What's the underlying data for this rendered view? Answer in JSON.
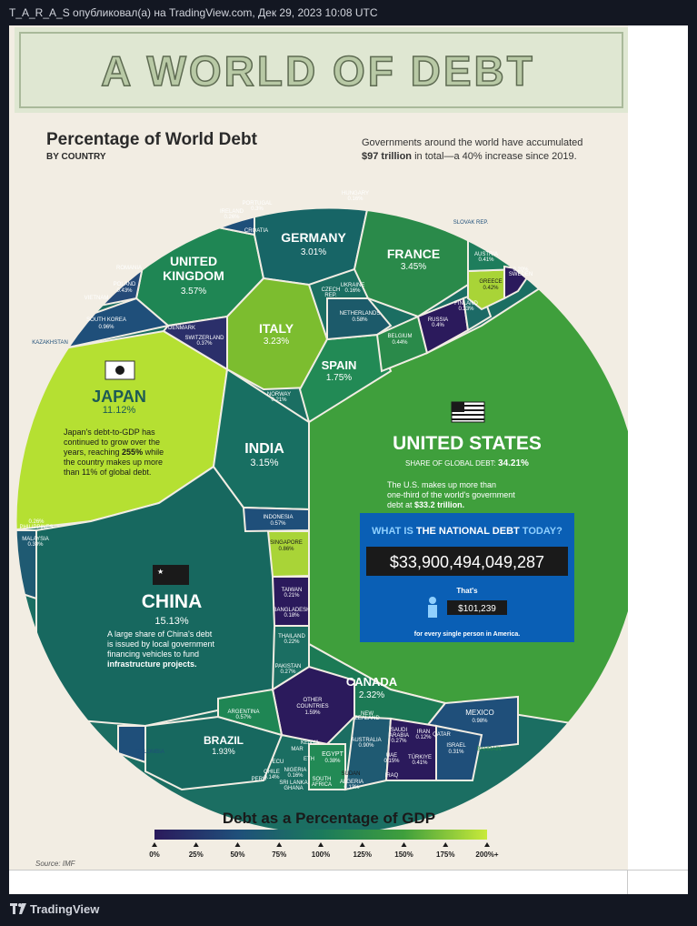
{
  "header": {
    "published_line": "T_A_R_A_S опубликовал(а) на TradingView.com, Дек 29, 2023 10:08 UTC"
  },
  "footer": {
    "brand": "TradingView"
  },
  "infographic": {
    "banner_title": "A WORLD OF DEBT",
    "title": "Percentage of World Debt",
    "subtitle": "BY COUNTRY",
    "intro_line1": "Governments around the world have accumulated",
    "intro_bold": "$97 trillion",
    "intro_line2": " in total—a 40% increase since 2019.",
    "source": "Source: IMF",
    "legend_title": "Debt as a Percentage of GDP",
    "legend_ticks": [
      "0%",
      "25%",
      "50%",
      "75%",
      "100%",
      "125%",
      "150%",
      "175%",
      "200%+"
    ],
    "colors": {
      "paper": "#f2ede3",
      "banner": "#dfe7d2",
      "banner_text": "#b8c9a5",
      "scale_0": "#2b1a5c",
      "scale_50": "#1f4f7a",
      "scale_100": "#1b7a5c",
      "scale_150": "#3f9f3c",
      "scale_200": "#c9ea3a",
      "debt_panel": "#0a5fb5",
      "debt_counter": "#1a1a1a"
    },
    "us": {
      "name": "UNITED STATES",
      "share_label": "SHARE OF GLOBAL DEBT:",
      "share": "34.21%",
      "note1": "The U.S. makes up more than",
      "note2": "one-third of the world's government",
      "note3": "debt at",
      "note_bold": "$33.2 trillion.",
      "debt_title_a": "WHAT IS",
      "debt_title_b": "THE NATIONAL DEBT",
      "debt_title_c": "TODAY?",
      "debt_counter": "$33,900,494,049,287",
      "thats": "That's",
      "per_person": "$101,239",
      "per_person_note": "for every single person in America."
    },
    "japan": {
      "name": "JAPAN",
      "value": "11.12%",
      "note1": "Japan's debt-to-GDP has",
      "note2": "continued to grow over the",
      "note3a": "years, reaching ",
      "note3b": "255%",
      "note3c": " while",
      "note4": "the country makes up more",
      "note5": "than 11% of global debt."
    },
    "china": {
      "name": "CHINA",
      "value": "15.13%",
      "note1": "A large share of China's debt",
      "note2": "is issued by local government",
      "note3": "financing vehicles to fund",
      "note4": "infrastructure projects."
    }
  },
  "chart_data": {
    "type": "treemap",
    "title": "Percentage of World Debt",
    "subtitle": "BY COUNTRY",
    "unit": "share of global debt (%)",
    "items": [
      {
        "label": "UNITED STATES",
        "value": 34.21
      },
      {
        "label": "CHINA",
        "value": 15.13
      },
      {
        "label": "JAPAN",
        "value": 11.12
      },
      {
        "label": "UNITED KINGDOM",
        "value": 3.57
      },
      {
        "label": "FRANCE",
        "value": 3.45
      },
      {
        "label": "ITALY",
        "value": 3.23
      },
      {
        "label": "INDIA",
        "value": 3.15
      },
      {
        "label": "GERMANY",
        "value": 3.01
      },
      {
        "label": "CANADA",
        "value": 2.32
      },
      {
        "label": "BRAZIL",
        "value": 1.93
      },
      {
        "label": "SPAIN",
        "value": 1.75
      },
      {
        "label": "OTHER COUNTRIES",
        "value": 1.59
      },
      {
        "label": "MEXICO",
        "value": 0.98
      },
      {
        "label": "SOUTH KOREA",
        "value": 0.96
      },
      {
        "label": "AUSTRALIA",
        "value": 0.9
      },
      {
        "label": "SINGAPORE",
        "value": 0.86
      },
      {
        "label": "ARGENTINA",
        "value": 0.57
      },
      {
        "label": "INDONESIA",
        "value": 0.57
      },
      {
        "label": "NETHERLANDS",
        "value": 0.58
      },
      {
        "label": "BELGIUM",
        "value": 0.44
      },
      {
        "label": "POLAND",
        "value": 0.43
      },
      {
        "label": "GREECE",
        "value": 0.42
      },
      {
        "label": "AUSTRIA",
        "value": 0.41
      },
      {
        "label": "TÜRKIYE",
        "value": 0.41
      },
      {
        "label": "SWITZERLAND",
        "value": 0.37
      },
      {
        "label": "EGYPT",
        "value": 0.38
      },
      {
        "label": "ISRAEL",
        "value": 0.31
      },
      {
        "label": "MALAYSIA",
        "value": 0.3
      },
      {
        "label": "RUSSIA",
        "value": 0.4
      },
      {
        "label": "PORTUGAL",
        "value": 0.3
      },
      {
        "label": "SAUDI ARABIA",
        "value": 0.27
      },
      {
        "label": "PAKISTAN",
        "value": 0.27
      },
      {
        "label": "IRELAND",
        "value": 0.26
      },
      {
        "label": "PHILIPPINES",
        "value": 0.26
      },
      {
        "label": "FINLAND",
        "value": 0.23
      },
      {
        "label": "THAILAND",
        "value": 0.22
      },
      {
        "label": "TAIWAN",
        "value": 0.21
      },
      {
        "label": "NORWAY",
        "value": 0.21
      },
      {
        "label": "SWEDEN",
        "value": 0.2
      },
      {
        "label": "BANGLADESH",
        "value": 0.18
      },
      {
        "label": "HUNGARY",
        "value": 0.16
      },
      {
        "label": "UKRAINE",
        "value": 0.16
      },
      {
        "label": "IRAN",
        "value": 0.12
      },
      {
        "label": "VIETNAM",
        "value": 0.12
      },
      {
        "label": "CHILE",
        "value": 0.14
      },
      {
        "label": "NIGERIA",
        "value": 0.16
      },
      {
        "label": "ALGERIA",
        "value": 0.13
      },
      {
        "label": "IRAQ",
        "value": 0.12
      }
    ],
    "small_labels": [
      "ROMANIA",
      "DENMARK",
      "CROATIA",
      "CZECH REP.",
      "SLOVAK REP.",
      "KAZAKHSTAN",
      "COLOMBIA",
      "BAHRAIN",
      "NEW ZEALAND",
      "QATAR",
      "UAE",
      "KENYA",
      "MAR",
      "ETH",
      "ECU",
      "PERU",
      "SRI LANKA",
      "GHANA",
      "SUDAN",
      "SOUTH AFRICA"
    ],
    "color_scale": {
      "label": "Debt as a Percentage of GDP",
      "ticks": [
        "0%",
        "25%",
        "50%",
        "75%",
        "100%",
        "125%",
        "150%",
        "175%",
        "200%+"
      ]
    }
  }
}
